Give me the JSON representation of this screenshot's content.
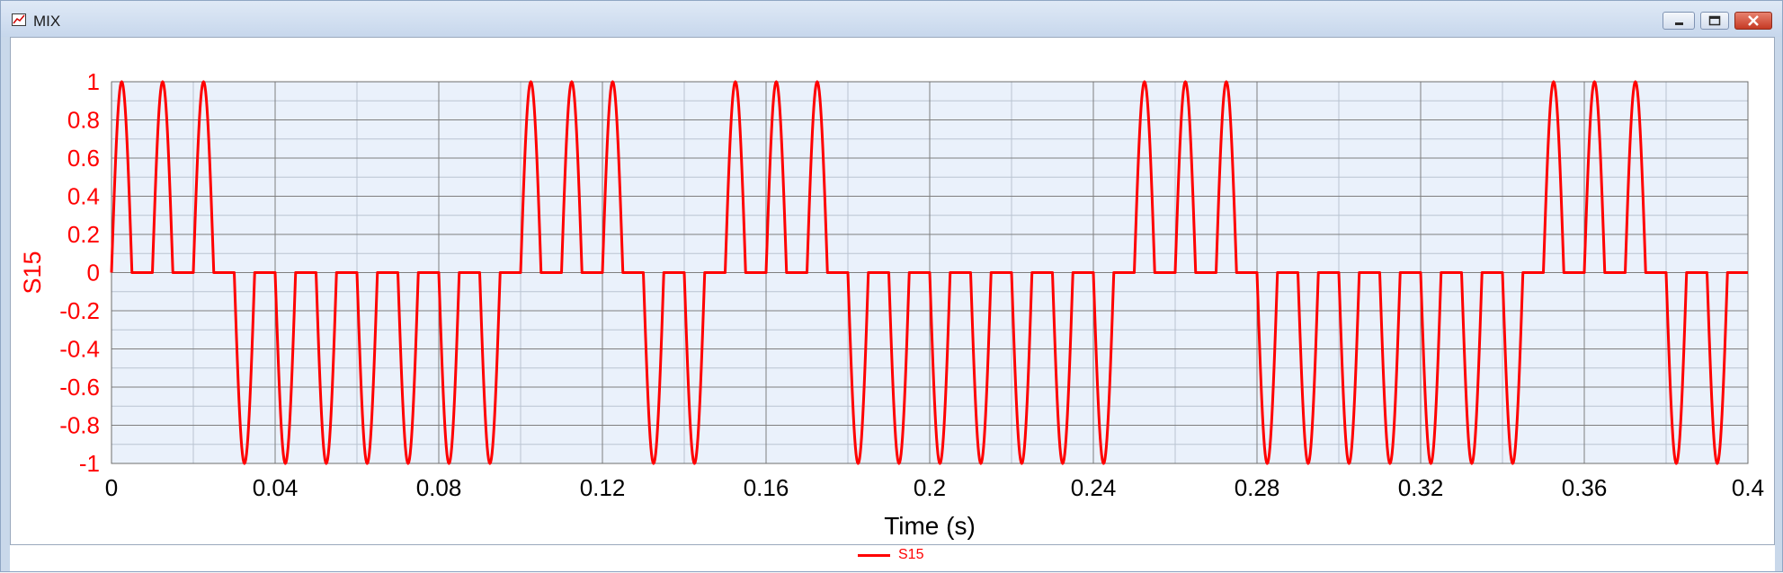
{
  "window": {
    "title": "MIX",
    "icon": "chart-icon",
    "controls": [
      "minimize-icon",
      "restore-icon",
      "close-icon"
    ]
  },
  "colors": {
    "series": "#ff0000",
    "plot_bg": "#eaf1fb",
    "grid_major": "#7f7f7f",
    "grid_minor": "#b9c4d2"
  },
  "chart_data": {
    "type": "line",
    "title": "",
    "xlabel": "Time (s)",
    "ylabel": "S15",
    "xlim": [
      0,
      0.4
    ],
    "ylim": [
      -1,
      1
    ],
    "x_ticks": [
      "0",
      "0.04",
      "0.08",
      "0.12",
      "0.16",
      "0.2",
      "0.24",
      "0.28",
      "0.32",
      "0.36",
      "0.4"
    ],
    "y_ticks": [
      "1",
      "0.8",
      "0.6",
      "0.4",
      "0.2",
      "0",
      "-0.2",
      "-0.4",
      "-0.6",
      "-0.8",
      "-1"
    ],
    "grid": true,
    "legend_position": "bottom-center",
    "series": [
      {
        "name": "S15",
        "color": "#ff0000",
        "pulse_width_s": 0.005,
        "amplitude": 1,
        "pulses": [
          {
            "start": 0.0,
            "sign": 1
          },
          {
            "start": 0.01,
            "sign": 1
          },
          {
            "start": 0.02,
            "sign": 1
          },
          {
            "start": 0.03,
            "sign": -1
          },
          {
            "start": 0.04,
            "sign": -1
          },
          {
            "start": 0.05,
            "sign": -1
          },
          {
            "start": 0.06,
            "sign": -1
          },
          {
            "start": 0.07,
            "sign": -1
          },
          {
            "start": 0.08,
            "sign": -1
          },
          {
            "start": 0.09,
            "sign": -1
          },
          {
            "start": 0.1,
            "sign": 1
          },
          {
            "start": 0.11,
            "sign": 1
          },
          {
            "start": 0.12,
            "sign": 1
          },
          {
            "start": 0.13,
            "sign": -1
          },
          {
            "start": 0.14,
            "sign": -1
          },
          {
            "start": 0.15,
            "sign": 1
          },
          {
            "start": 0.16,
            "sign": 1
          },
          {
            "start": 0.17,
            "sign": 1
          },
          {
            "start": 0.18,
            "sign": -1
          },
          {
            "start": 0.19,
            "sign": -1
          },
          {
            "start": 0.2,
            "sign": -1
          },
          {
            "start": 0.21,
            "sign": -1
          },
          {
            "start": 0.22,
            "sign": -1
          },
          {
            "start": 0.23,
            "sign": -1
          },
          {
            "start": 0.24,
            "sign": -1
          },
          {
            "start": 0.25,
            "sign": 1
          },
          {
            "start": 0.26,
            "sign": 1
          },
          {
            "start": 0.27,
            "sign": 1
          },
          {
            "start": 0.28,
            "sign": -1
          },
          {
            "start": 0.29,
            "sign": -1
          },
          {
            "start": 0.3,
            "sign": -1
          },
          {
            "start": 0.31,
            "sign": -1
          },
          {
            "start": 0.32,
            "sign": -1
          },
          {
            "start": 0.33,
            "sign": -1
          },
          {
            "start": 0.34,
            "sign": -1
          },
          {
            "start": 0.35,
            "sign": 1
          },
          {
            "start": 0.36,
            "sign": 1
          },
          {
            "start": 0.37,
            "sign": 1
          },
          {
            "start": 0.38,
            "sign": -1
          },
          {
            "start": 0.39,
            "sign": -1
          }
        ]
      }
    ]
  }
}
